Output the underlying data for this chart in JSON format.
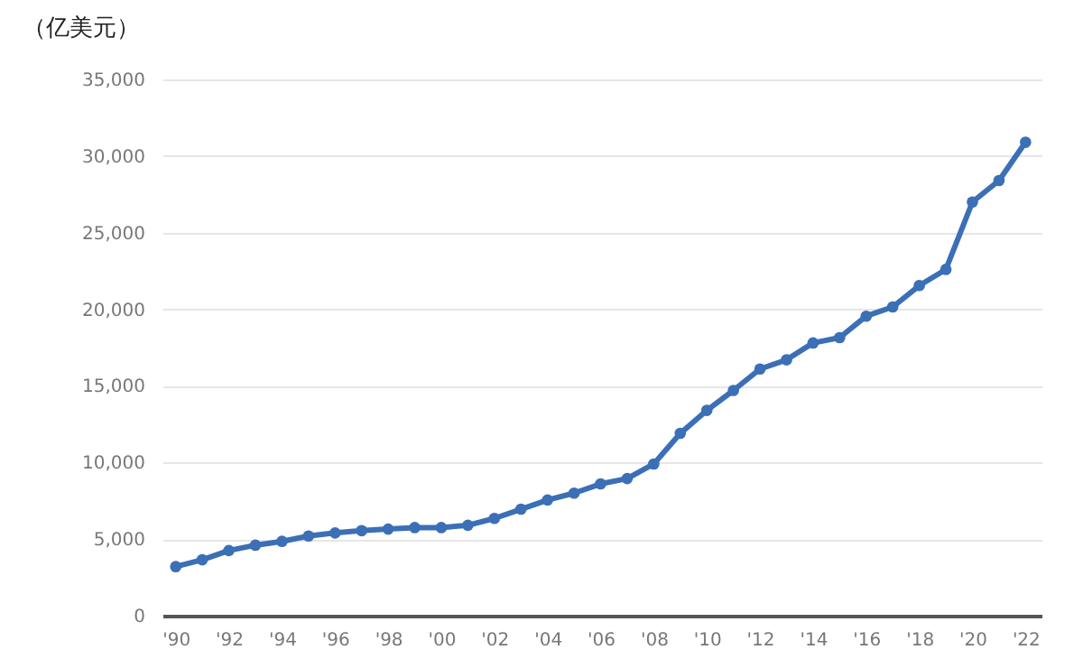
{
  "chart_data": {
    "type": "line",
    "ylabel": "（亿美元）",
    "x": [
      1990,
      1991,
      1992,
      1993,
      1994,
      1995,
      1996,
      1997,
      1998,
      1999,
      2000,
      2001,
      2002,
      2003,
      2004,
      2005,
      2006,
      2007,
      2008,
      2009,
      2010,
      2011,
      2012,
      2013,
      2014,
      2015,
      2016,
      2017,
      2018,
      2019,
      2020,
      2021,
      2022
    ],
    "series": [
      {
        "color": "#3b6fb6",
        "values": [
          3200,
          3650,
          4250,
          4600,
          4850,
          5200,
          5400,
          5550,
          5650,
          5750,
          5750,
          5900,
          6350,
          6950,
          7550,
          8000,
          8600,
          8950,
          9900,
          11900,
          13400,
          14700,
          16100,
          16700,
          17800,
          18150,
          19550,
          20150,
          21550,
          22600,
          27000,
          28400,
          30900
        ]
      }
    ],
    "xlim": [
      1989.5,
      2022.6
    ],
    "xticks": [
      {
        "value": 1990,
        "label": "'90"
      },
      {
        "value": 1992,
        "label": "'92"
      },
      {
        "value": 1994,
        "label": "'94"
      },
      {
        "value": 1996,
        "label": "'96"
      },
      {
        "value": 1998,
        "label": "'98"
      },
      {
        "value": 2000,
        "label": "'00"
      },
      {
        "value": 2002,
        "label": "'02"
      },
      {
        "value": 2004,
        "label": "'04"
      },
      {
        "value": 2006,
        "label": "'06"
      },
      {
        "value": 2008,
        "label": "'08"
      },
      {
        "value": 2010,
        "label": "'10"
      },
      {
        "value": 2012,
        "label": "'12"
      },
      {
        "value": 2014,
        "label": "'14"
      },
      {
        "value": 2016,
        "label": "'16"
      },
      {
        "value": 2018,
        "label": "'18"
      },
      {
        "value": 2020,
        "label": "'20"
      },
      {
        "value": 2022,
        "label": "'22"
      }
    ],
    "ylim": [
      0,
      35000
    ],
    "yticks": [
      {
        "value": 0,
        "label": "0"
      },
      {
        "value": 5000,
        "label": "5,000"
      },
      {
        "value": 10000,
        "label": "10,000"
      },
      {
        "value": 15000,
        "label": "15,000"
      },
      {
        "value": 20000,
        "label": "20,000"
      },
      {
        "value": 25000,
        "label": "25,000"
      },
      {
        "value": 30000,
        "label": "30,000"
      },
      {
        "value": 35000,
        "label": "35,000"
      }
    ],
    "grid": "y",
    "marker": "circle",
    "line_style": "solid"
  }
}
